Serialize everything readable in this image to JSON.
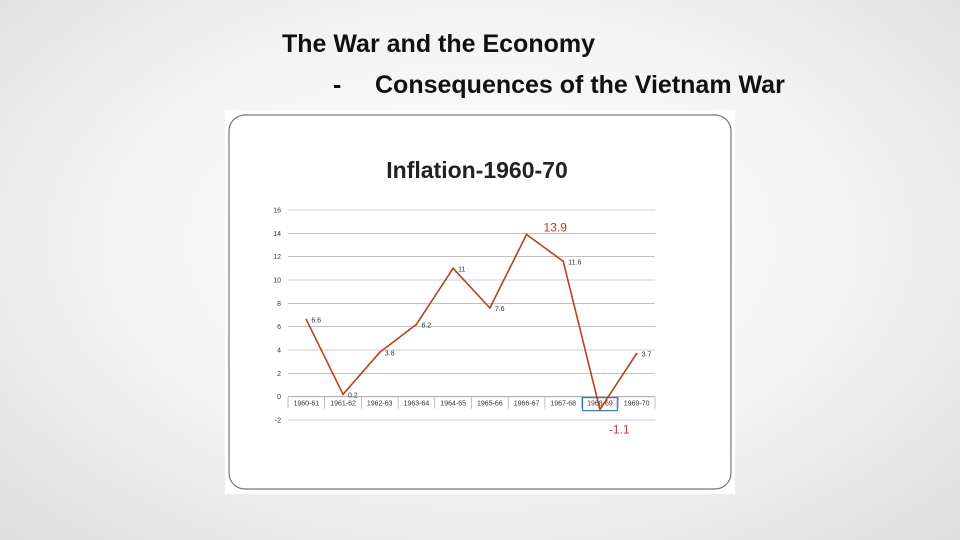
{
  "slide": {
    "title": "The War and the Economy",
    "subtitle_bullet": "-",
    "subtitle": "Consequences of the Vietnam War"
  },
  "chart_data": {
    "type": "line",
    "title": "Inflation-1960-70",
    "categories": [
      "1960-61",
      "1961-62",
      "1962-63",
      "1963-64",
      "1964-65",
      "1965-66",
      "1966-67",
      "1967-68",
      "1968-69",
      "1969-70"
    ],
    "series": [
      {
        "values": [
          6.6,
          0.2,
          3.8,
          6.2,
          11,
          7.6,
          13.9,
          11.6,
          -1.1,
          3.7
        ]
      }
    ],
    "data_labels": [
      "6.6",
      "0.2",
      "3.8",
      "6.2",
      "11",
      "7.6",
      "",
      "11.6",
      "",
      "3.7"
    ],
    "callouts": {
      "max": "13.9",
      "min": "-1.1"
    },
    "y_ticks": [
      "16",
      "14",
      "12",
      "10",
      "8",
      "6",
      "4",
      "2",
      "0",
      "-2"
    ],
    "ylim": [
      -2,
      16
    ],
    "grid": true,
    "highlight_category": "1968-69",
    "colors": {
      "line": "#b5431c",
      "grid": "#9a9a9a",
      "callout": "#c0392b",
      "highlight_box": "#2e6bb8"
    }
  }
}
